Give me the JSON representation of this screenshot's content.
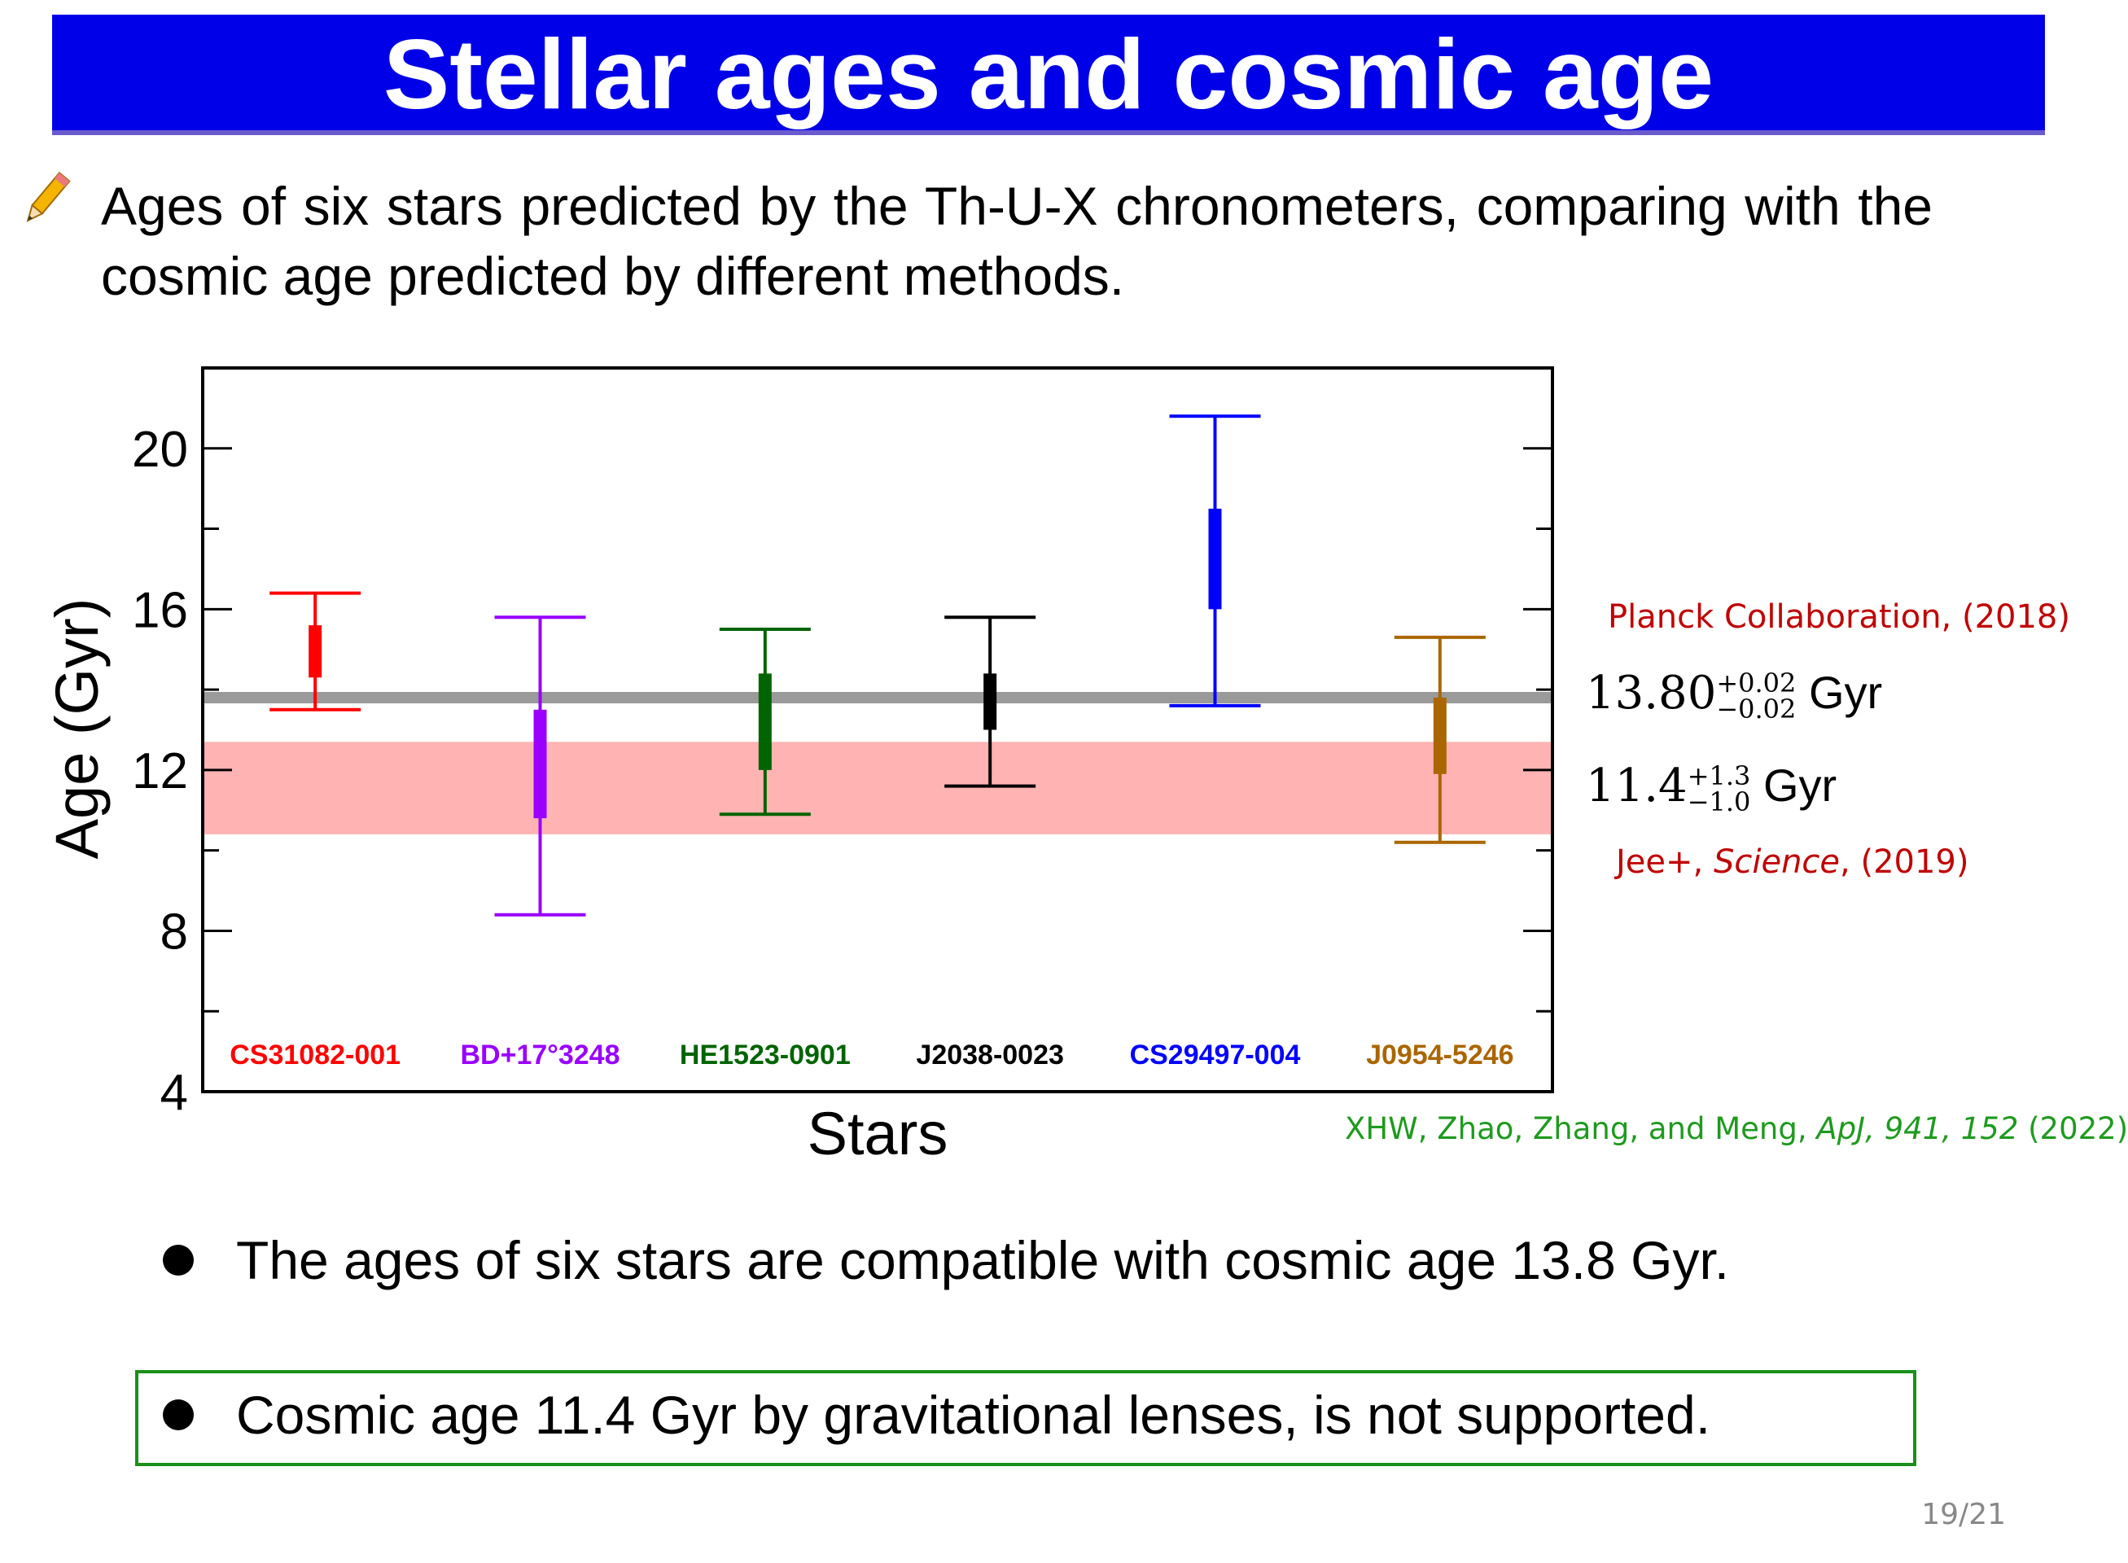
{
  "slide": {
    "title": "Stellar ages and cosmic age",
    "intro": "Ages of six stars predicted by the Th-U-X chronometers, comparing with the cosmic age predicted by different methods.",
    "planck_ref": "Planck Collaboration, (2018)",
    "planck_value": "13.80",
    "planck_sup": "+0.02",
    "planck_sub": "−0.02",
    "jee_value": "11.4",
    "jee_sup": "+1.3",
    "jee_sub": "−1.0",
    "unit": "Gyr",
    "jee_ref_prefix": "Jee+, ",
    "jee_ref_journal": "Science",
    "jee_ref_suffix": ", (2019)",
    "citation_authors": "XHW, Zhao, Zhang, and Meng, ",
    "citation_journal": "ApJ, 941, 152",
    "citation_year": " (2022)",
    "bullet1": "The ages of six stars are compatible with cosmic age 13.8 Gyr.",
    "bullet2": "Cosmic age 11.4 Gyr by gravitational lenses, is not supported.",
    "page": "19/21"
  },
  "chart_data": {
    "type": "scatter",
    "xlabel": "Stars",
    "ylabel": "Age (Gyr)",
    "ylim": [
      4,
      22
    ],
    "yticks": [
      4,
      8,
      12,
      16,
      20
    ],
    "planck_line": 13.8,
    "lens_band": [
      10.4,
      12.7
    ],
    "stars": [
      {
        "name": "CS31082-001",
        "color": "#ff0000",
        "whisker": [
          13.5,
          16.4
        ],
        "box": [
          14.3,
          15.6
        ]
      },
      {
        "name": "BD+17°3248",
        "color": "#9900ff",
        "whisker": [
          8.4,
          15.8
        ],
        "box": [
          10.8,
          13.5
        ]
      },
      {
        "name": "HE1523-0901",
        "color": "#006400",
        "whisker": [
          10.9,
          15.5
        ],
        "box": [
          12.0,
          14.4
        ]
      },
      {
        "name": "J2038-0023",
        "color": "#000000",
        "whisker": [
          11.6,
          15.8
        ],
        "box": [
          13.0,
          14.4
        ]
      },
      {
        "name": "CS29497-004",
        "color": "#0000ff",
        "whisker": [
          13.6,
          20.8
        ],
        "box": [
          16.0,
          18.5
        ]
      },
      {
        "name": "J0954-5246",
        "color": "#aa6600",
        "whisker": [
          10.2,
          15.3
        ],
        "box": [
          11.9,
          13.8
        ]
      }
    ]
  }
}
